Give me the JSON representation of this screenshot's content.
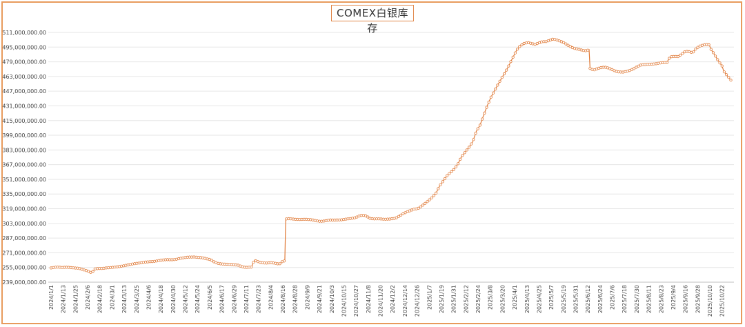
{
  "chart_data": {
    "type": "line",
    "title": "COMEX白银库存",
    "xlabel": "",
    "ylabel": "",
    "ylim": [
      239000000,
      511000000
    ],
    "y_ticks": [
      239000000,
      255000000,
      271000000,
      287000000,
      303000000,
      319000000,
      335000000,
      351000000,
      367000000,
      383000000,
      399000000,
      415000000,
      431000000,
      447000000,
      463000000,
      479000000,
      495000000,
      511000000
    ],
    "y_tick_labels": [
      "239,000,000.00",
      "255,000,000.00",
      "271,000,000.00",
      "287,000,000.00",
      "303,000,000.00",
      "319,000,000.00",
      "335,000,000.00",
      "351,000,000.00",
      "367,000,000.00",
      "383,000,000.00",
      "399,000,000.00",
      "415,000,000.00",
      "431,000,000.00",
      "447,000,000.00",
      "463,000,000.00",
      "479,000,000.00",
      "495,000,000.00",
      "511,000,000.00"
    ],
    "x_tick_labels": [
      "2024/1/1",
      "2024/1/13",
      "2024/1/25",
      "2024/2/6",
      "2024/2/18",
      "2024/3/1",
      "2024/3/13",
      "2024/3/25",
      "2024/4/6",
      "2024/4/18",
      "2024/4/30",
      "2024/5/12",
      "2024/5/24",
      "2024/6/5",
      "2024/6/17",
      "2024/6/29",
      "2024/7/11",
      "2024/7/23",
      "2024/8/4",
      "2024/8/16",
      "2024/8/28",
      "2024/9/9",
      "2024/9/21",
      "2024/10/3",
      "2024/10/15",
      "2024/10/27",
      "2024/11/8",
      "2024/11/20",
      "2024/12/2",
      "2024/12/14",
      "2024/12/26",
      "2025/1/7",
      "2025/1/19",
      "2025/1/31",
      "2025/2/12",
      "2025/2/24",
      "2025/3/8",
      "2025/3/20",
      "2025/4/1",
      "2025/4/13",
      "2025/4/25",
      "2025/5/7",
      "2025/5/19",
      "2025/5/31",
      "2025/6/12",
      "2025/6/24",
      "2025/7/6",
      "2025/7/18",
      "2025/7/30",
      "2025/8/11",
      "2025/8/23",
      "2025/9/4",
      "2025/9/16",
      "2025/9/28",
      "2025/10/10",
      "2025/10/22"
    ],
    "series": [
      {
        "color": "#e07b39",
        "values": [
          [
            0,
            254500000
          ],
          [
            6,
            255500000
          ],
          [
            12,
            255000000
          ],
          [
            18,
            255300000
          ],
          [
            24,
            254600000
          ],
          [
            30,
            254200000
          ],
          [
            34,
            252800000
          ],
          [
            38,
            251800000
          ],
          [
            42,
            250400000
          ],
          [
            44,
            249200000
          ],
          [
            46,
            251000000
          ],
          [
            48,
            253400000
          ],
          [
            52,
            254000000
          ],
          [
            56,
            253800000
          ],
          [
            60,
            254500000
          ],
          [
            66,
            255000000
          ],
          [
            72,
            255600000
          ],
          [
            78,
            256600000
          ],
          [
            84,
            257800000
          ],
          [
            90,
            259000000
          ],
          [
            96,
            259800000
          ],
          [
            102,
            260800000
          ],
          [
            108,
            261300000
          ],
          [
            114,
            261800000
          ],
          [
            120,
            263000000
          ],
          [
            126,
            263500000
          ],
          [
            132,
            263400000
          ],
          [
            136,
            263700000
          ],
          [
            140,
            264800000
          ],
          [
            146,
            265800000
          ],
          [
            150,
            266300000
          ],
          [
            156,
            266400000
          ],
          [
            160,
            266100000
          ],
          [
            166,
            265400000
          ],
          [
            170,
            264400000
          ],
          [
            174,
            263500000
          ],
          [
            178,
            261000000
          ],
          [
            182,
            259500000
          ],
          [
            186,
            258800000
          ],
          [
            192,
            258500000
          ],
          [
            198,
            258200000
          ],
          [
            204,
            257500000
          ],
          [
            208,
            256000000
          ],
          [
            212,
            255000000
          ],
          [
            216,
            255300000
          ],
          [
            219,
            255500000
          ],
          [
            220,
            259200000
          ],
          [
            222,
            262800000
          ],
          [
            224,
            262000000
          ],
          [
            228,
            260500000
          ],
          [
            234,
            259700000
          ],
          [
            240,
            260300000
          ],
          [
            244,
            259700000
          ],
          [
            248,
            258800000
          ],
          [
            250,
            259100000
          ],
          [
            252,
            261300000
          ],
          [
            254,
            262000000
          ],
          [
            255,
            262200000
          ],
          [
            256,
            307800000
          ],
          [
            260,
            308200000
          ],
          [
            266,
            307500000
          ],
          [
            272,
            307300000
          ],
          [
            278,
            307500000
          ],
          [
            284,
            307000000
          ],
          [
            290,
            305800000
          ],
          [
            294,
            305200000
          ],
          [
            298,
            305600000
          ],
          [
            304,
            306700000
          ],
          [
            310,
            306600000
          ],
          [
            316,
            306800000
          ],
          [
            322,
            307700000
          ],
          [
            328,
            308500000
          ],
          [
            332,
            309200000
          ],
          [
            336,
            311000000
          ],
          [
            340,
            312000000
          ],
          [
            344,
            311000000
          ],
          [
            348,
            308500000
          ],
          [
            352,
            307900000
          ],
          [
            358,
            308000000
          ],
          [
            364,
            307500000
          ],
          [
            370,
            307800000
          ],
          [
            376,
            308700000
          ],
          [
            380,
            311000000
          ],
          [
            384,
            313500000
          ],
          [
            388,
            315500000
          ],
          [
            392,
            317000000
          ],
          [
            396,
            318500000
          ],
          [
            400,
            319000000
          ],
          [
            404,
            321500000
          ],
          [
            408,
            324800000
          ],
          [
            412,
            328000000
          ],
          [
            416,
            331500000
          ],
          [
            420,
            336000000
          ],
          [
            424,
            344000000
          ],
          [
            428,
            349500000
          ],
          [
            432,
            355000000
          ],
          [
            436,
            358500000
          ],
          [
            440,
            362300000
          ],
          [
            444,
            368000000
          ],
          [
            448,
            376000000
          ],
          [
            452,
            381000000
          ],
          [
            456,
            386000000
          ],
          [
            460,
            392000000
          ],
          [
            464,
            403500000
          ],
          [
            468,
            410000000
          ],
          [
            472,
            421000000
          ],
          [
            476,
            431500000
          ],
          [
            480,
            440500000
          ],
          [
            484,
            448000000
          ],
          [
            488,
            455000000
          ],
          [
            492,
            462000000
          ],
          [
            496,
            468500000
          ],
          [
            500,
            476000000
          ],
          [
            504,
            484000000
          ],
          [
            508,
            491800000
          ],
          [
            512,
            496500000
          ],
          [
            516,
            499000000
          ],
          [
            520,
            500000000
          ],
          [
            524,
            499000000
          ],
          [
            528,
            498000000
          ],
          [
            532,
            499500000
          ],
          [
            536,
            501000000
          ],
          [
            540,
            501000000
          ],
          [
            544,
            502500000
          ],
          [
            548,
            503800000
          ],
          [
            552,
            502700000
          ],
          [
            556,
            501300000
          ],
          [
            560,
            499500000
          ],
          [
            564,
            497000000
          ],
          [
            568,
            494800000
          ],
          [
            572,
            493300000
          ],
          [
            576,
            492600000
          ],
          [
            580,
            491400000
          ],
          [
            584,
            491000000
          ],
          [
            587,
            492300000
          ],
          [
            588,
            471800000
          ],
          [
            592,
            470000000
          ],
          [
            596,
            471500000
          ],
          [
            600,
            472700000
          ],
          [
            604,
            473300000
          ],
          [
            608,
            472200000
          ],
          [
            612,
            470500000
          ],
          [
            616,
            468700000
          ],
          [
            620,
            467900000
          ],
          [
            624,
            467800000
          ],
          [
            628,
            468500000
          ],
          [
            632,
            469900000
          ],
          [
            636,
            471600000
          ],
          [
            640,
            474000000
          ],
          [
            644,
            475700000
          ],
          [
            648,
            476000000
          ],
          [
            652,
            476300000
          ],
          [
            656,
            476500000
          ],
          [
            660,
            476900000
          ],
          [
            664,
            477700000
          ],
          [
            668,
            478100000
          ],
          [
            672,
            478300000
          ],
          [
            674,
            482400000
          ],
          [
            676,
            484600000
          ],
          [
            680,
            484800000
          ],
          [
            684,
            484700000
          ],
          [
            688,
            487300000
          ],
          [
            692,
            490500000
          ],
          [
            696,
            490000000
          ],
          [
            700,
            488800000
          ],
          [
            704,
            493800000
          ],
          [
            708,
            496200000
          ],
          [
            712,
            497500000
          ],
          [
            716,
            497800000
          ],
          [
            718,
            497500000
          ],
          [
            720,
            492500000
          ],
          [
            724,
            486500000
          ],
          [
            728,
            480000000
          ],
          [
            732,
            474500000
          ],
          [
            734,
            468500000
          ],
          [
            738,
            463500000
          ],
          [
            742,
            458500000
          ]
        ]
      }
    ]
  }
}
